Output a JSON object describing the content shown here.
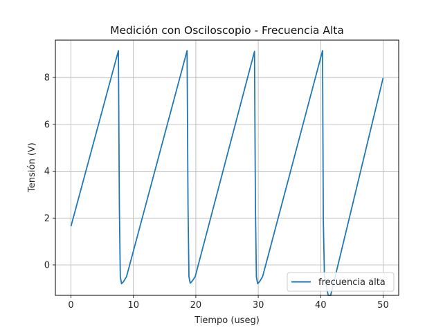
{
  "chart_data": {
    "type": "line",
    "title": "Medición con Osciloscopio - Frecuencia Alta",
    "xlabel": "Tiempo (useg)",
    "ylabel": "Tensión (V)",
    "xlim": [
      -2.5,
      52.5
    ],
    "ylim": [
      -1.3,
      9.6
    ],
    "xticks": [
      0,
      10,
      20,
      30,
      40,
      50
    ],
    "yticks": [
      0,
      2,
      4,
      6,
      8
    ],
    "grid": true,
    "legend_position": "lower-right",
    "series": [
      {
        "name": "frecuencia alta",
        "color": "#1f77b4",
        "x": [
          0.0,
          7.6,
          7.75,
          7.9,
          8.1,
          8.4,
          8.9,
          18.6,
          18.75,
          18.9,
          19.1,
          19.4,
          19.9,
          29.4,
          29.55,
          29.7,
          29.9,
          30.2,
          30.7,
          40.3,
          40.42,
          40.6,
          41.2,
          41.6,
          50.0
        ],
        "y": [
          1.65,
          9.15,
          2.5,
          -0.5,
          -0.8,
          -0.72,
          -0.5,
          9.15,
          2.5,
          -0.5,
          -0.78,
          -0.7,
          -0.5,
          9.12,
          2.5,
          -0.5,
          -0.8,
          -0.72,
          -0.5,
          9.15,
          2.0,
          -0.45,
          -1.3,
          -1.3,
          7.98
        ]
      }
    ]
  }
}
